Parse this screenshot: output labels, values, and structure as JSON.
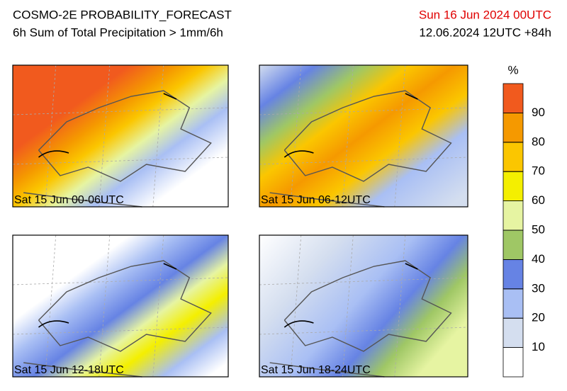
{
  "header": {
    "title": "COSMO-2E PROBABILITY_FORECAST",
    "subtitle": "6h Sum of Total Precipitation > 1mm/6h",
    "valid": "Sun 16 Jun 2024 00UTC",
    "run": "12.06.2024 12UTC +84h"
  },
  "panels": [
    {
      "label": "Sat 15 Jun 00-06UTC"
    },
    {
      "label": "Sat 15 Jun 06-12UTC"
    },
    {
      "label": "Sat 15 Jun 12-18UTC"
    },
    {
      "label": "Sat 15 Jun 18-24UTC"
    }
  ],
  "colorbar": {
    "unit": "%",
    "lim": [
      0,
      100
    ],
    "ticks": [
      10,
      20,
      30,
      40,
      50,
      60,
      70,
      80,
      90
    ],
    "colors": [
      "#ffffff",
      "#d4deef",
      "#a9bff4",
      "#6683e4",
      "#9fc765",
      "#e6f4a2",
      "#f4ef00",
      "#fbc600",
      "#f59900",
      "#f15a1e"
    ]
  }
}
